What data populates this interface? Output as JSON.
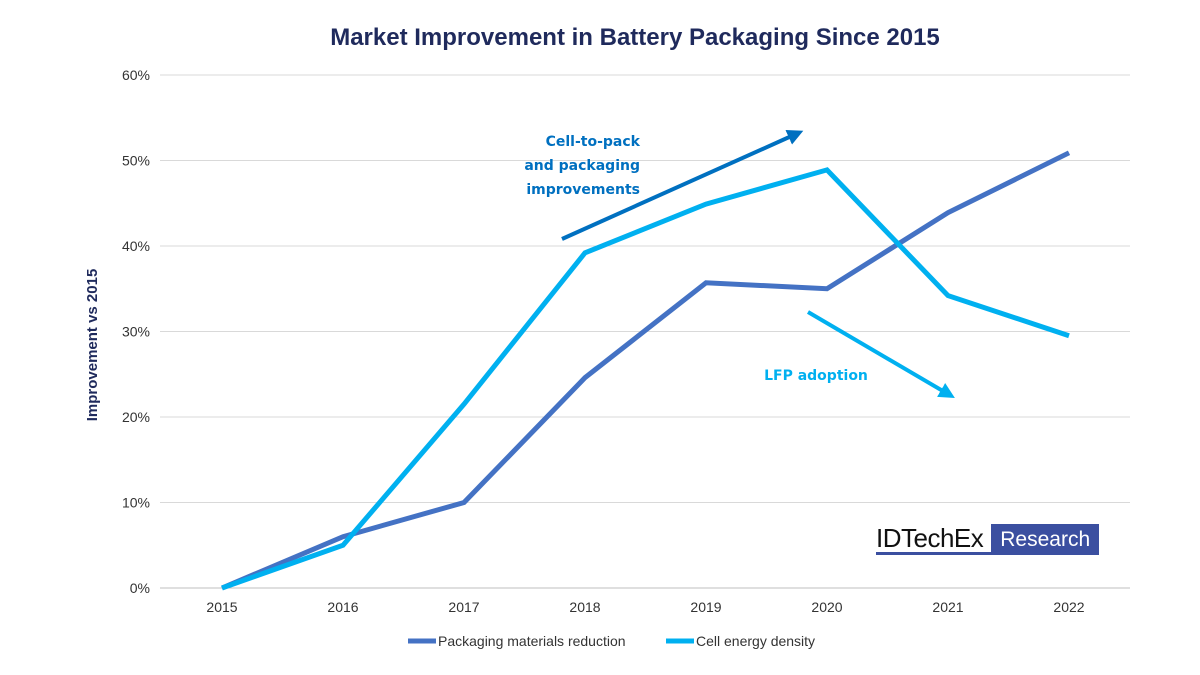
{
  "chart_data": {
    "type": "line",
    "title": "Market Improvement in Battery Packaging Since 2015",
    "xlabel": "",
    "ylabel": "Improvement vs 2015",
    "categories": [
      "2015",
      "2016",
      "2017",
      "2018",
      "2019",
      "2020",
      "2021",
      "2022"
    ],
    "ylim": [
      0,
      60
    ],
    "yticks": [
      "0%",
      "10%",
      "20%",
      "30%",
      "40%",
      "50%",
      "60%"
    ],
    "grid": true,
    "legend_placement": "bottom",
    "series": [
      {
        "name": "Packaging materials reduction",
        "color": "#4472c4",
        "values": [
          0,
          6,
          10,
          24.6,
          35.7,
          35.0,
          43.9,
          50.9
        ]
      },
      {
        "name": "Cell energy density",
        "color": "#00b0f0",
        "values": [
          0,
          5,
          21.5,
          39.2,
          44.9,
          48.9,
          34.2,
          29.5
        ]
      }
    ],
    "annotations": [
      {
        "lines": [
          "Cell-to-pack",
          "and packaging",
          "improvements"
        ],
        "color": "#0070c0"
      },
      {
        "lines": [
          "LFP adoption"
        ],
        "color": "#00b0f0"
      }
    ]
  },
  "logo": {
    "left": "IDTechEx",
    "right": "Research"
  }
}
